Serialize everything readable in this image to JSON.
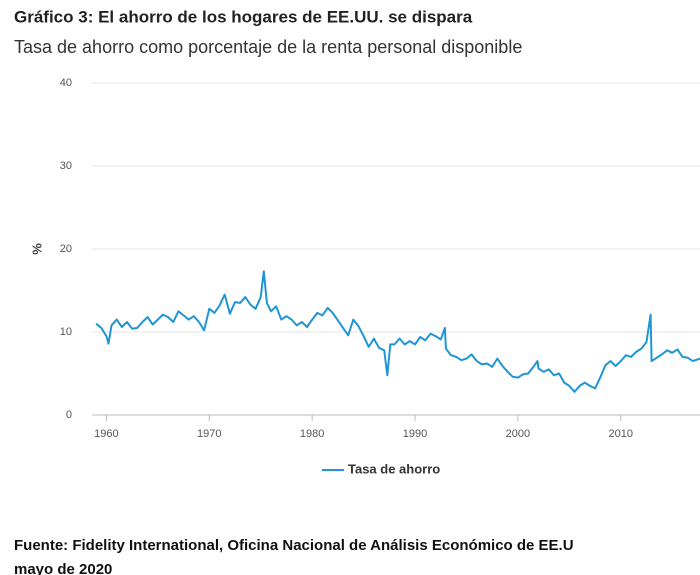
{
  "chart_data": {
    "type": "line",
    "title": "Gráfico 3: El ahorro de los hogares de EE.UU. se dispara",
    "subtitle": "Tasa de ahorro como porcentaje de la renta personal disponible",
    "y_label": "%",
    "source": "Fuente: Fidelity International, Oficina Nacional de Análisis Económico de EE.U",
    "source_date": "mayo de 2020",
    "x": [
      1959,
      1959.5,
      1960,
      1960.2,
      1960.5,
      1961,
      1961.5,
      1962,
      1962.5,
      1963,
      1963.5,
      1964,
      1964.5,
      1965,
      1965.5,
      1966,
      1966.5,
      1967,
      1967.5,
      1968,
      1968.5,
      1969,
      1969.5,
      1970,
      1970.5,
      1971,
      1971.5,
      1972,
      1972.5,
      1973,
      1973.5,
      1974,
      1974.5,
      1975,
      1975.3,
      1975.6,
      1976,
      1976.5,
      1977,
      1977.5,
      1978,
      1978.5,
      1979,
      1979.5,
      1980,
      1980.5,
      1981,
      1981.5,
      1982,
      1982.5,
      1983,
      1983.5,
      1984,
      1984.5,
      1985,
      1985.5,
      1986,
      1986.5,
      1987,
      1987.3,
      1987.6,
      1988,
      1988.5,
      1989,
      1989.5,
      1990,
      1990.5,
      1991,
      1991.5,
      1992,
      1992.5,
      1992.9,
      1993,
      1993.5,
      1994,
      1994.5,
      1995,
      1995.5,
      1996,
      1996.5,
      1997,
      1997.5,
      1998,
      1998.5,
      1999,
      1999.5,
      2000,
      2000.5,
      2001,
      2001.5,
      2001.9,
      2002,
      2002.5,
      2003,
      2003.5,
      2004,
      2004.5,
      2005,
      2005.5,
      2006,
      2006.5,
      2007,
      2007.5,
      2008,
      2008.5,
      2009,
      2009.5,
      2010,
      2010.5,
      2011,
      2011.5,
      2012,
      2012.5,
      2012.9,
      2013,
      2013.5,
      2014,
      2014.5,
      2015,
      2015.5,
      2016,
      2016.5,
      2017,
      2017.7
    ],
    "series": [
      {
        "name": "Tasa de ahorro",
        "color": "#1f96d3",
        "values": [
          11,
          10.5,
          9.5,
          8.6,
          10.8,
          11.5,
          10.6,
          11.2,
          10.4,
          10.5,
          11.2,
          11.8,
          10.9,
          11.5,
          12.1,
          11.8,
          11.2,
          12.5,
          12,
          11.5,
          11.9,
          11.2,
          10.2,
          12.8,
          12.3,
          13.2,
          14.5,
          12.2,
          13.6,
          13.5,
          14.2,
          13.3,
          12.8,
          14.2,
          17.3,
          13.5,
          12.5,
          13.1,
          11.5,
          11.9,
          11.5,
          10.8,
          11.2,
          10.6,
          11.5,
          12.3,
          12,
          12.9,
          12.3,
          11.4,
          10.5,
          9.6,
          11.5,
          10.7,
          9.5,
          8.2,
          9.2,
          8.1,
          7.8,
          4.8,
          8.5,
          8.5,
          9.2,
          8.5,
          8.9,
          8.5,
          9.4,
          9,
          9.8,
          9.5,
          9.1,
          10.5,
          8,
          7.2,
          7,
          6.6,
          6.8,
          7.3,
          6.5,
          6.1,
          6.2,
          5.8,
          6.8,
          5.9,
          5.2,
          4.6,
          4.5,
          4.9,
          5,
          5.8,
          6.5,
          5.6,
          5.2,
          5.5,
          4.8,
          5,
          3.9,
          3.5,
          2.8,
          3.5,
          3.9,
          3.5,
          3.2,
          4.5,
          6,
          6.5,
          5.9,
          6.5,
          7.2,
          7,
          7.6,
          8,
          8.8,
          12.1,
          6.5,
          6.9,
          7.3,
          7.8,
          7.5,
          7.9,
          7.0,
          6.9,
          6.5,
          6.8
        ]
      }
    ],
    "xlim": [
      1958.6,
      2017.7
    ],
    "xticks": [
      1960,
      1970,
      1980,
      1990,
      2000,
      2010
    ],
    "ylim": [
      0,
      40
    ],
    "yticks": [
      0,
      10,
      20,
      30,
      40
    ],
    "grid": true
  }
}
